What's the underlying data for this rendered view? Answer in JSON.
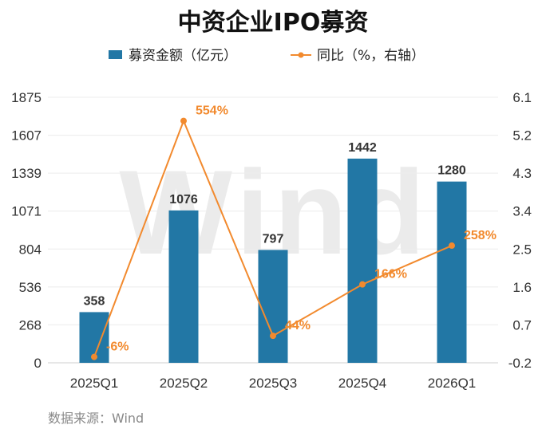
{
  "chart_data": {
    "type": "bar",
    "title": "中资企业IPO募资",
    "categories": [
      "2025Q1",
      "2025Q2",
      "2025Q3",
      "2025Q4",
      "2026Q1"
    ],
    "series": [
      {
        "name": "募资金额（亿元）",
        "type": "bar",
        "axis": "left",
        "color": "#2277a5",
        "values": [
          358,
          1076,
          797,
          1442,
          1280
        ],
        "labels": [
          "358",
          "1076",
          "797",
          "1442",
          "1280"
        ]
      },
      {
        "name": "同比（%，右轴）",
        "type": "line",
        "axis": "right",
        "color": "#f28a2e",
        "values": [
          -0.06,
          5.54,
          0.44,
          1.66,
          2.58
        ],
        "labels": [
          "-6%",
          "554%",
          "44%",
          "166%",
          "258%"
        ]
      }
    ],
    "y_left": {
      "min": 0,
      "max": 1875,
      "ticks": [
        "0",
        "268",
        "536",
        "804",
        "1071",
        "1339",
        "1607",
        "1875"
      ]
    },
    "y_right": {
      "min": -0.2,
      "max": 6.1,
      "ticks": [
        "-0.2",
        "0.7",
        "1.6",
        "2.5",
        "3.4",
        "4.3",
        "5.2",
        "6.1"
      ]
    },
    "legend_position": "top",
    "grid": true,
    "source": "数据来源：Wind",
    "watermark": "Wind"
  }
}
